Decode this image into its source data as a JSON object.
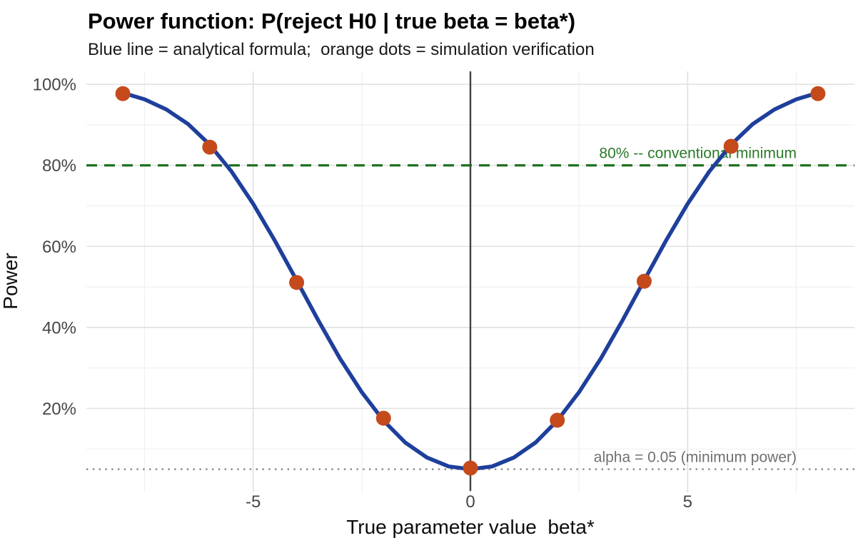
{
  "header": {
    "title": "Power function: P(reject H0 | true beta = beta*)",
    "subtitle": "Blue line = analytical formula;  orange dots = simulation verification"
  },
  "chart_data": {
    "type": "line",
    "title": "Power function: P(reject H0 | true beta = beta*)",
    "subtitle": "Blue line = analytical formula;  orange dots = simulation verification",
    "xlabel": "True parameter value  beta*",
    "ylabel": "Power",
    "xlim": [
      -8.84,
      8.84
    ],
    "ylim": [
      -0.7,
      103.2
    ],
    "grid": true,
    "legend": "none",
    "x_ticks": [
      -5,
      0,
      5
    ],
    "x_tick_labels": [
      "-5",
      "0",
      "5"
    ],
    "x_minor_ticks": [
      -7.5,
      -2.5,
      2.5,
      7.5
    ],
    "y_ticks": [
      20,
      40,
      60,
      80,
      100
    ],
    "y_tick_labels": [
      "20%",
      "40%",
      "60%",
      "80%",
      "100%"
    ],
    "y_minor_ticks": [
      10,
      30,
      50,
      70,
      90
    ],
    "zero_line_x": 0,
    "series": [
      {
        "name": "analytical formula",
        "type": "line",
        "color": "#1e3f9b",
        "stroke_width": 5.5,
        "x": [
          -8,
          -7.5,
          -7,
          -6.5,
          -6,
          -5.5,
          -5,
          -4.5,
          -4,
          -3.5,
          -3,
          -2.5,
          -2,
          -1.5,
          -1,
          -0.5,
          0,
          0.5,
          1,
          1.5,
          2,
          2.5,
          3,
          3.5,
          4,
          4.5,
          5,
          5.5,
          6,
          6.5,
          7,
          7.5,
          8
        ],
        "y_percent": [
          97.9,
          96.3,
          93.8,
          90.2,
          85.1,
          78.5,
          70.5,
          61.4,
          51.6,
          41.7,
          32.3,
          24.0,
          17.0,
          11.6,
          7.9,
          5.7,
          5.0,
          5.7,
          7.9,
          11.6,
          17.0,
          24.0,
          32.3,
          41.7,
          51.6,
          61.4,
          70.5,
          78.5,
          85.1,
          90.2,
          93.8,
          96.3,
          97.9
        ]
      },
      {
        "name": "simulation verification",
        "type": "scatter",
        "color": "#c44a1c",
        "radius": 10.5,
        "x": [
          -8,
          -6,
          -4,
          -2,
          0,
          2,
          4,
          6,
          8
        ],
        "y_percent": [
          97.7,
          84.5,
          51.1,
          17.6,
          5.3,
          17.1,
          51.4,
          84.7,
          97.7
        ]
      }
    ],
    "reference_lines": [
      {
        "name": "conventional-minimum",
        "axis": "y",
        "value": 80,
        "style": "dashed",
        "color": "#1e701e",
        "label": "80% -- conventional minimum",
        "label_color": "#2a7a2a"
      },
      {
        "name": "alpha-level",
        "axis": "y",
        "value": 5,
        "style": "dotted",
        "color": "#8a8a8a",
        "label": "alpha = 0.05 (minimum power)",
        "label_color": "#707070"
      }
    ]
  }
}
